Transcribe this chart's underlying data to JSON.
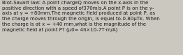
{
  "text": "Biot-Savart law: A point chargeQ moves on the x-axis in the\npositive direction with a speed of370m/s.A point P is on the y-\naxis at y = +80mm.The magnetic field produced at point P, as\nthe charge moves through the origin, is equal to-0.80μTk. When\nthe charge is at x = +40 mm,what is the magnitude of the\nmagnetic field at point P? (μ0= 4π×10-7T·m/A)",
  "bg_color": "#cbc8c0",
  "text_color": "#1a1a1a",
  "font_size": 5.0,
  "fig_width": 2.62,
  "fig_height": 0.79,
  "dpi": 100
}
